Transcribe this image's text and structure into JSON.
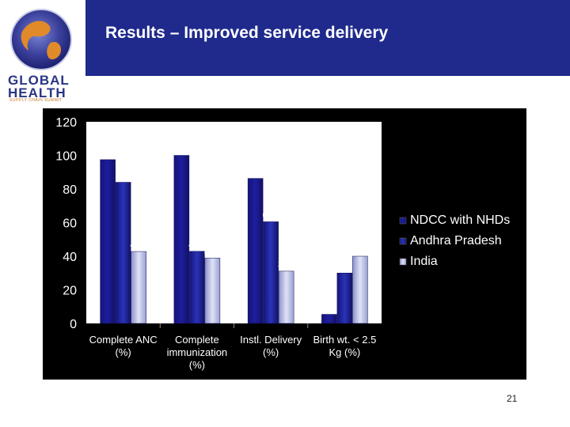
{
  "slide": {
    "title": "Results – Improved service delivery",
    "page_number": "21"
  },
  "logo": {
    "line1": "GLOBAL",
    "line2": "HEALTH",
    "tagline": "SUPPLY CHAIN SUMMIT"
  },
  "colors": {
    "header_band": "#1f2a8c",
    "series": [
      "#1e1e9e",
      "#2b33b8",
      "#b9bfe6"
    ]
  },
  "chart_data": {
    "type": "bar",
    "categories": [
      [
        "Complete ANC",
        "(%)"
      ],
      [
        "Complete",
        "immunization",
        "(%)"
      ],
      [
        "Instl. Delivery",
        "(%)"
      ],
      [
        "Birth wt. < 2.5",
        "Kg (%)"
      ]
    ],
    "series": [
      {
        "name": "NDCC with NHDs",
        "values": [
          97.46,
          100,
          86.3,
          5.4
        ],
        "labels": [
          "97.46",
          "100",
          "86.3",
          "5.4"
        ]
      },
      {
        "name": "Andhra Pradesh",
        "values": [
          84,
          42.9,
          60.5,
          30
        ],
        "labels": [
          "84",
          "42.9",
          "60.5",
          "30"
        ]
      },
      {
        "name": "India",
        "values": [
          42.8,
          38.9,
          31.1,
          40
        ],
        "labels": [
          "42.8",
          "38.9",
          "31.1",
          "40"
        ]
      }
    ],
    "y_ticks": [
      0,
      20,
      40,
      60,
      80,
      100,
      120
    ],
    "ylim": [
      0,
      120
    ],
    "legend_position": "right",
    "grid": false
  }
}
